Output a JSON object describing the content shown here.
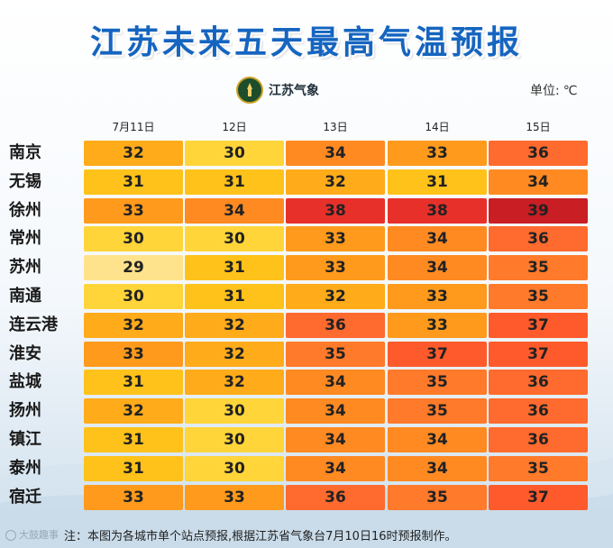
{
  "title": "江苏未来五天最高气温预报",
  "logo": {
    "text": "江苏气象"
  },
  "unit": {
    "label": "单位:",
    "value": "℃"
  },
  "colors": {
    "title": "#1565c0",
    "t29": "#ffe38c",
    "t30": "#ffd53a",
    "t31": "#ffc21a",
    "t32": "#ffab1a",
    "t33": "#ff9a1c",
    "t34": "#ff8a22",
    "t35": "#ff7a2a",
    "t36": "#ff6a2e",
    "t37": "#ff5a2c",
    "t38": "#e8302b",
    "t39": "#c81e24"
  },
  "chart_data": {
    "type": "table",
    "categories": [
      "7月11日",
      "12日",
      "13日",
      "14日",
      "15日"
    ],
    "rows": [
      {
        "city": "南京",
        "values": [
          32,
          30,
          34,
          33,
          36
        ]
      },
      {
        "city": "无锡",
        "values": [
          31,
          31,
          32,
          31,
          34
        ]
      },
      {
        "city": "徐州",
        "values": [
          33,
          34,
          38,
          38,
          39
        ]
      },
      {
        "city": "常州",
        "values": [
          30,
          30,
          33,
          34,
          36
        ]
      },
      {
        "city": "苏州",
        "values": [
          29,
          31,
          33,
          34,
          35
        ]
      },
      {
        "city": "南通",
        "values": [
          30,
          31,
          32,
          33,
          35
        ]
      },
      {
        "city": "连云港",
        "values": [
          32,
          32,
          36,
          33,
          37
        ]
      },
      {
        "city": "淮安",
        "values": [
          33,
          32,
          35,
          37,
          37
        ]
      },
      {
        "city": "盐城",
        "values": [
          31,
          32,
          34,
          35,
          36
        ]
      },
      {
        "city": "扬州",
        "values": [
          32,
          30,
          34,
          35,
          36
        ]
      },
      {
        "city": "镇江",
        "values": [
          31,
          30,
          34,
          34,
          36
        ]
      },
      {
        "city": "泰州",
        "values": [
          31,
          30,
          34,
          34,
          35
        ]
      },
      {
        "city": "宿迁",
        "values": [
          33,
          33,
          36,
          35,
          37
        ]
      }
    ]
  },
  "footer": {
    "brand": "大鼓趣事",
    "note": "注：本图为各城市单个站点预报,根据江苏省气象台7月10日16时预报制作。"
  }
}
